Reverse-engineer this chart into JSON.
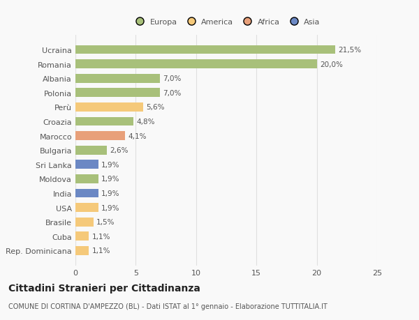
{
  "categories": [
    "Rep. Dominicana",
    "Cuba",
    "Brasile",
    "USA",
    "India",
    "Moldova",
    "Sri Lanka",
    "Bulgaria",
    "Marocco",
    "Croazia",
    "Perù",
    "Polonia",
    "Albania",
    "Romania",
    "Ucraina"
  ],
  "values": [
    1.1,
    1.1,
    1.5,
    1.9,
    1.9,
    1.9,
    1.9,
    2.6,
    4.1,
    4.8,
    5.6,
    7.0,
    7.0,
    20.0,
    21.5
  ],
  "labels": [
    "1,1%",
    "1,1%",
    "1,5%",
    "1,9%",
    "1,9%",
    "1,9%",
    "1,9%",
    "2,6%",
    "4,1%",
    "4,8%",
    "5,6%",
    "7,0%",
    "7,0%",
    "20,0%",
    "21,5%"
  ],
  "colors": [
    "#f5c97a",
    "#f5c97a",
    "#f5c97a",
    "#f5c97a",
    "#6b88c4",
    "#a8c07a",
    "#6b88c4",
    "#a8c07a",
    "#e8a07a",
    "#a8c07a",
    "#f5c97a",
    "#a8c07a",
    "#a8c07a",
    "#a8c07a",
    "#a8c07a"
  ],
  "legend_labels": [
    "Europa",
    "America",
    "Africa",
    "Asia"
  ],
  "legend_colors": [
    "#a8c07a",
    "#f5c97a",
    "#e8a07a",
    "#6b88c4"
  ],
  "title": "Cittadini Stranieri per Cittadinanza",
  "subtitle": "COMUNE DI CORTINA D'AMPEZZO (BL) - Dati ISTAT al 1° gennaio - Elaborazione TUTTITALIA.IT",
  "xlim": [
    0,
    25
  ],
  "xticks": [
    0,
    5,
    10,
    15,
    20,
    25
  ],
  "background_color": "#f9f9f9",
  "grid_color": "#e0e0e0",
  "text_color": "#555555",
  "label_fontsize": 7.5,
  "tick_fontsize": 8,
  "title_fontsize": 10,
  "subtitle_fontsize": 7
}
